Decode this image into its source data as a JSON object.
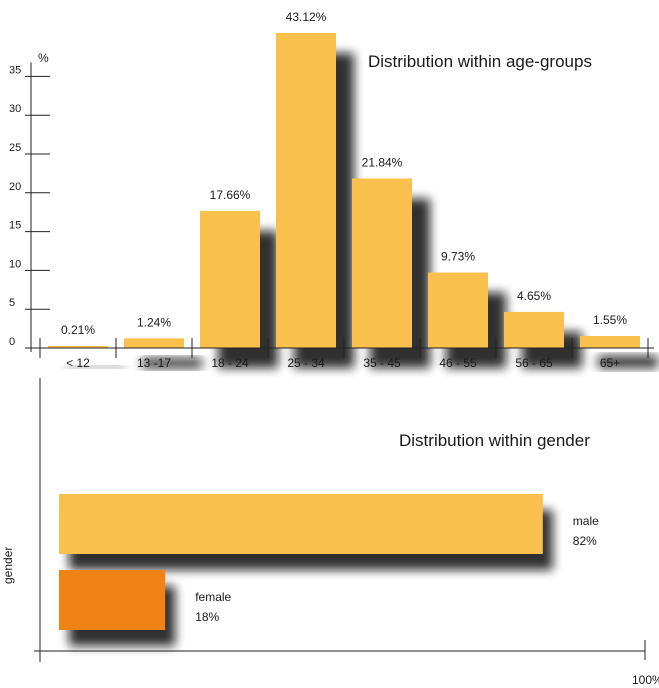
{
  "chart_data": [
    {
      "type": "bar",
      "title": "Distribution within age-groups",
      "ylabel": "%",
      "ylim": [
        0,
        35
      ],
      "yticks": [
        0,
        5,
        10,
        15,
        20,
        25,
        30,
        35
      ],
      "categories": [
        "< 12",
        "13 -17",
        "18 - 24",
        "25 - 34",
        "35 - 45",
        "46 - 55",
        "56 - 65",
        "65+"
      ],
      "values": [
        0.21,
        1.24,
        17.66,
        43.12,
        21.84,
        9.73,
        4.65,
        1.55
      ],
      "value_labels": [
        "0.21%",
        "1.24%",
        "17.66%",
        "43.12%",
        "21.84%",
        "9.73%",
        "4.65%",
        "1.55%"
      ],
      "bar_color": "#f9c04d"
    },
    {
      "type": "bar",
      "orientation": "horizontal",
      "title": "Distribution within gender",
      "ylabel": "gender",
      "xmax_label": "100%",
      "xlim": [
        0,
        100
      ],
      "bars": [
        {
          "name": "male",
          "value": 82,
          "label": "82%",
          "color": "#f9c04d"
        },
        {
          "name": "female",
          "value": 18,
          "label": "18%",
          "color": "#ef8316"
        }
      ]
    }
  ]
}
